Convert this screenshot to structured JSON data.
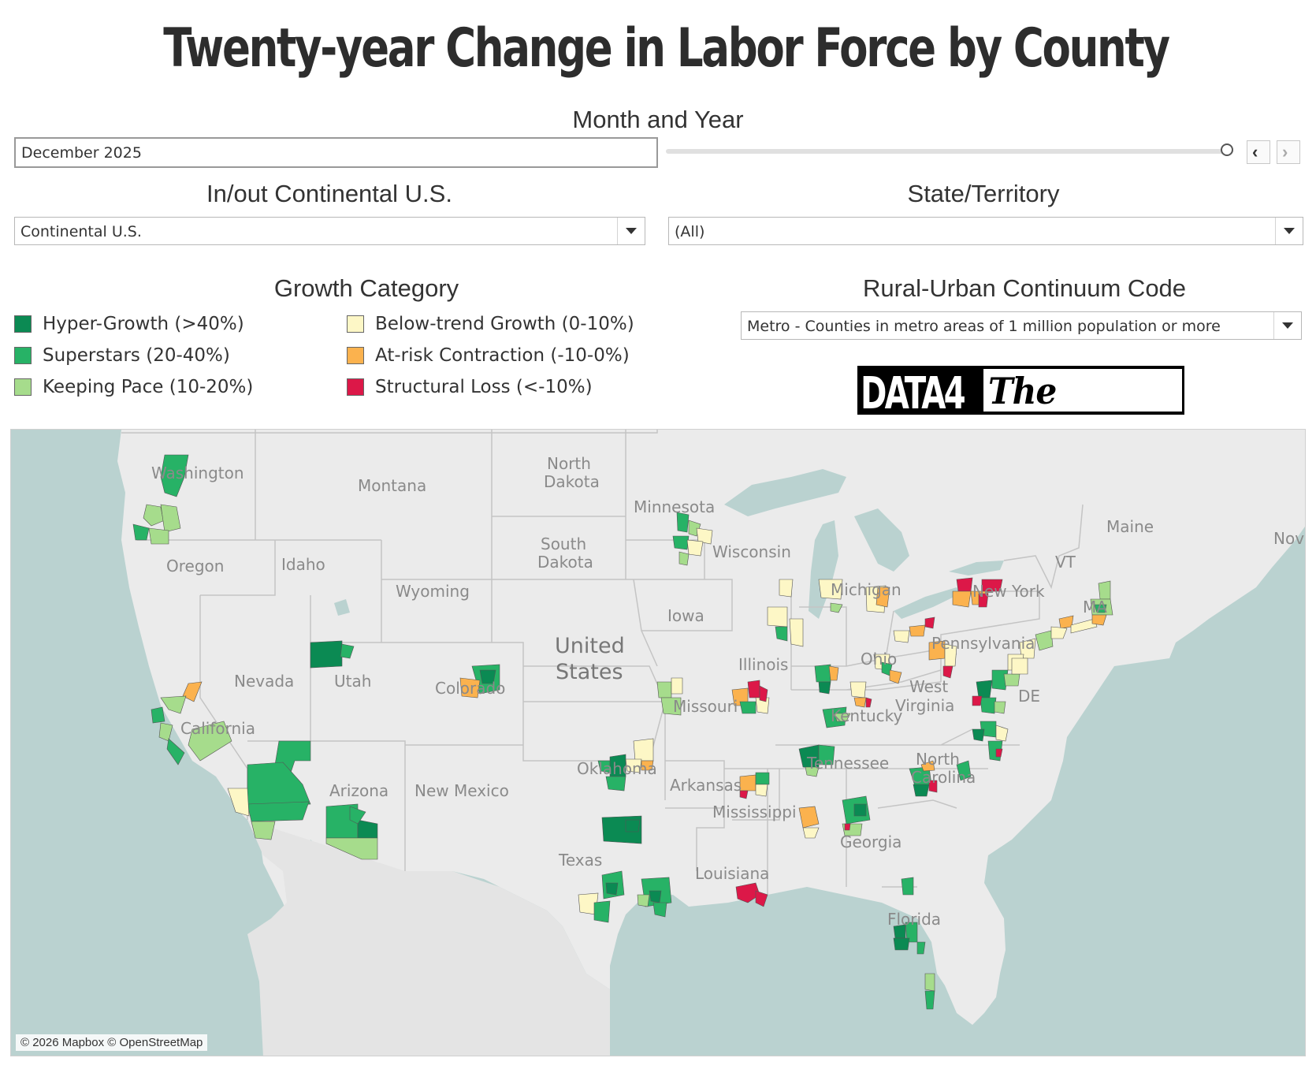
{
  "title": "Twenty-year Change in Labor Force by County",
  "month_year": {
    "label": "Month and Year",
    "value": "December 2025",
    "slider_position": 1.0,
    "prev_icon": "chevron-left-icon",
    "next_icon": "chevron-right-icon"
  },
  "continental": {
    "label": "In/out Continental U.S.",
    "value": "Continental U.S."
  },
  "state": {
    "label": "State/Territory",
    "value": "(All)"
  },
  "growth": {
    "label": "Growth Category",
    "items": [
      {
        "label": "Hyper-Growth (>40%)",
        "color": "#0b8a53"
      },
      {
        "label": "Superstars (20-40%)",
        "color": "#27b266"
      },
      {
        "label": "Keeping Pace (10-20%)",
        "color": "#a6dc8c"
      },
      {
        "label": "Below-trend Growth (0-10%)",
        "color": "#fdf7c6"
      },
      {
        "label": "At-risk Contraction (-10-0%)",
        "color": "#fbb24e"
      },
      {
        "label": "Structural Loss (<-10%)",
        "color": "#dc1848"
      }
    ]
  },
  "rucc": {
    "label": "Rural-Urban Continuum Code",
    "value": "Metro - Counties in metro areas of 1 million population or more"
  },
  "logo": {
    "part1": "DATA4",
    "part2": "The People"
  },
  "map": {
    "copyright": "© 2026 Mapbox © OpenStreetMap",
    "labels": {
      "washington": "Washington",
      "montana": "Montana",
      "north": "North",
      "dakota1": "Dakota",
      "minnesota": "Minnesota",
      "oregon": "Oregon",
      "idaho": "Idaho",
      "south": "South",
      "dakota2": "Dakota",
      "wisconsin": "Wisconsin",
      "maine": "Maine",
      "nova": "Nova",
      "vt": "VT",
      "wyoming": "Wyoming",
      "michigan": "Michigan",
      "newyork": "New York",
      "iowa": "Iowa",
      "united": "United",
      "states": "States",
      "nevada": "Nevada",
      "utah": "Utah",
      "colorado": "Colorado",
      "illinois": "Illinois",
      "ohio": "Ohio",
      "pennsylvania": "Pennsylvania",
      "ma": "MA",
      "missouri": "Missouri",
      "west": "West",
      "virginia": "Virginia",
      "de": "DE",
      "california": "California",
      "kentucky": "Kentucky",
      "tennessee": "Tennessee",
      "arizona": "Arizona",
      "newmexico": "New Mexico",
      "oklahoma": "Oklahoma",
      "arkansas": "Arkansas",
      "northc": "North",
      "carolina": "Carolina",
      "mississippi": "Mississippi",
      "georgia": "Georgia",
      "texas": "Texas",
      "louisiana": "Louisiana",
      "florida": "Florida"
    }
  }
}
